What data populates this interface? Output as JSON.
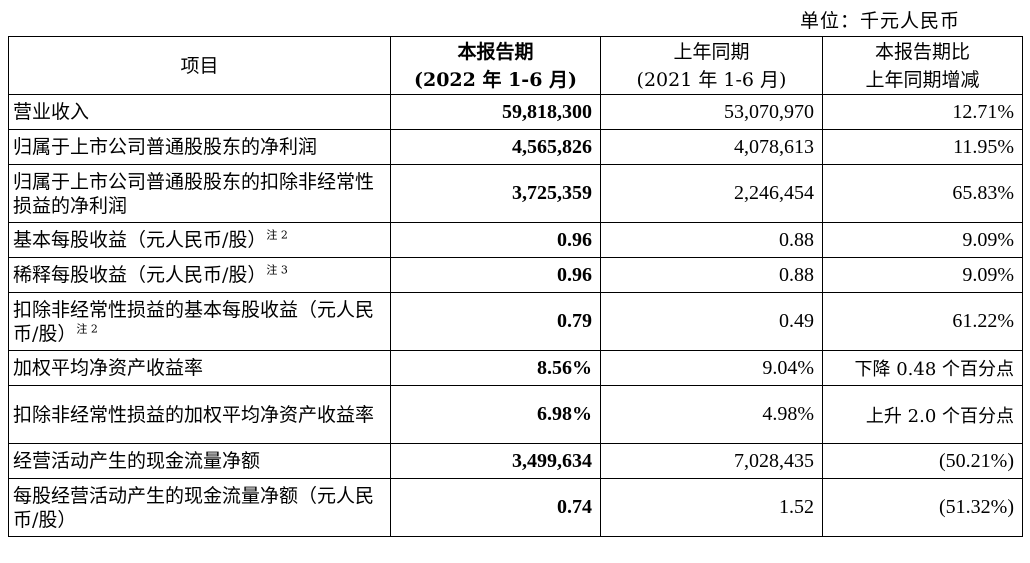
{
  "unit_label": "单位：千元人民币",
  "header": {
    "col_item": "项目",
    "col_current_line1": "本报告期",
    "col_current_line2": "(2022 年 1-6 月)",
    "col_prior_line1": "上年同期",
    "col_prior_line2": "(2021 年 1-6 月)",
    "col_change_line1": "本报告期比",
    "col_change_line2": "上年同期增减"
  },
  "rows": [
    {
      "label": "营业收入",
      "note": "",
      "current": "59,818,300",
      "prior": "53,070,970",
      "change": "12.71%",
      "tall": false,
      "text_change": false
    },
    {
      "label": "归属于上市公司普通股股东的净利润",
      "note": "",
      "current": "4,565,826",
      "prior": "4,078,613",
      "change": "11.95%",
      "tall": false,
      "text_change": false
    },
    {
      "label": "归属于上市公司普通股股东的扣除非经常性损益的净利润",
      "note": "",
      "current": "3,725,359",
      "prior": "2,246,454",
      "change": "65.83%",
      "tall": true,
      "text_change": false
    },
    {
      "label": "基本每股收益（元人民币/股）",
      "note": "注 2",
      "current": "0.96",
      "prior": "0.88",
      "change": "9.09%",
      "tall": false,
      "text_change": false
    },
    {
      "label": "稀释每股收益（元人民币/股）",
      "note": "注 3",
      "current": "0.96",
      "prior": "0.88",
      "change": "9.09%",
      "tall": false,
      "text_change": false
    },
    {
      "label": "扣除非经常性损益的基本每股收益（元人民币/股）",
      "note": "注 2",
      "current": "0.79",
      "prior": "0.49",
      "change": "61.22%",
      "tall": true,
      "text_change": false
    },
    {
      "label": "加权平均净资产收益率",
      "note": "",
      "current": "8.56%",
      "prior": "9.04%",
      "change": "下降 0.48 个百分点",
      "tall": false,
      "text_change": true
    },
    {
      "label": "扣除非经常性损益的加权平均净资产收益率",
      "note": "",
      "current": "6.98%",
      "prior": "4.98%",
      "change": "上升 2.0 个百分点",
      "tall": true,
      "text_change": true
    },
    {
      "label": "经营活动产生的现金流量净额",
      "note": "",
      "current": "3,499,634",
      "prior": "7,028,435",
      "change": "(50.21%)",
      "tall": false,
      "text_change": false
    },
    {
      "label": "每股经营活动产生的现金流量净额（元人民币/股）",
      "note": "",
      "current": "0.74",
      "prior": "1.52",
      "change": "(51.32%)",
      "tall": true,
      "text_change": false
    }
  ]
}
